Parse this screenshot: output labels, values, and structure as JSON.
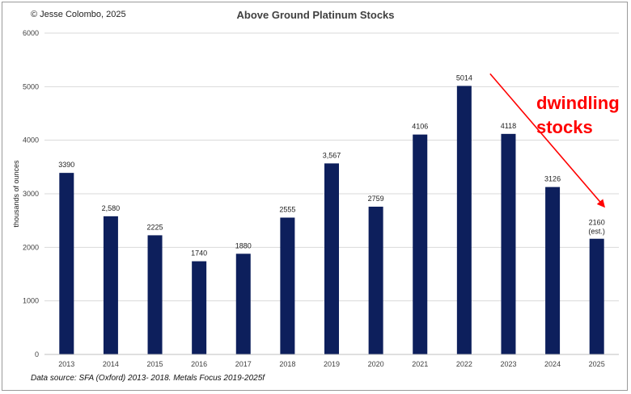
{
  "header": {
    "copyright": "© Jesse Colombo, 2025"
  },
  "footer": {
    "source": "Data source: SFA (Oxford) 2013- 2018. Metals Focus 2019-2025f"
  },
  "colors": {
    "bar": "#0d1f5c",
    "arrow": "#ff0000",
    "gridline": "#d9d9d9"
  },
  "chart_data": {
    "type": "bar",
    "title": "Above Ground Platinum Stocks",
    "xlabel": "",
    "ylabel": "thousands of ounces",
    "ylim": [
      0,
      6000
    ],
    "yticks": [
      0,
      1000,
      2000,
      3000,
      4000,
      5000,
      6000
    ],
    "grid": true,
    "categories": [
      "2013",
      "2014",
      "2015",
      "2016",
      "2017",
      "2018",
      "2019",
      "2020",
      "2021",
      "2022",
      "2023",
      "2024",
      "2025"
    ],
    "values": [
      3390,
      2580,
      2225,
      1740,
      1880,
      2555,
      3567,
      2759,
      4106,
      5014,
      4118,
      3126,
      2160
    ],
    "data_labels": [
      "3390",
      "2,580",
      "2225",
      "1740",
      "1880",
      "2555",
      "3,567",
      "2759",
      "4106",
      "5014",
      "4118",
      "3126",
      "2160"
    ],
    "estimate_note": "(est.)",
    "annotation": {
      "lines": [
        "dwindling",
        "stocks"
      ],
      "arrow_from_category": "2022",
      "arrow_to_category": "2025"
    }
  }
}
